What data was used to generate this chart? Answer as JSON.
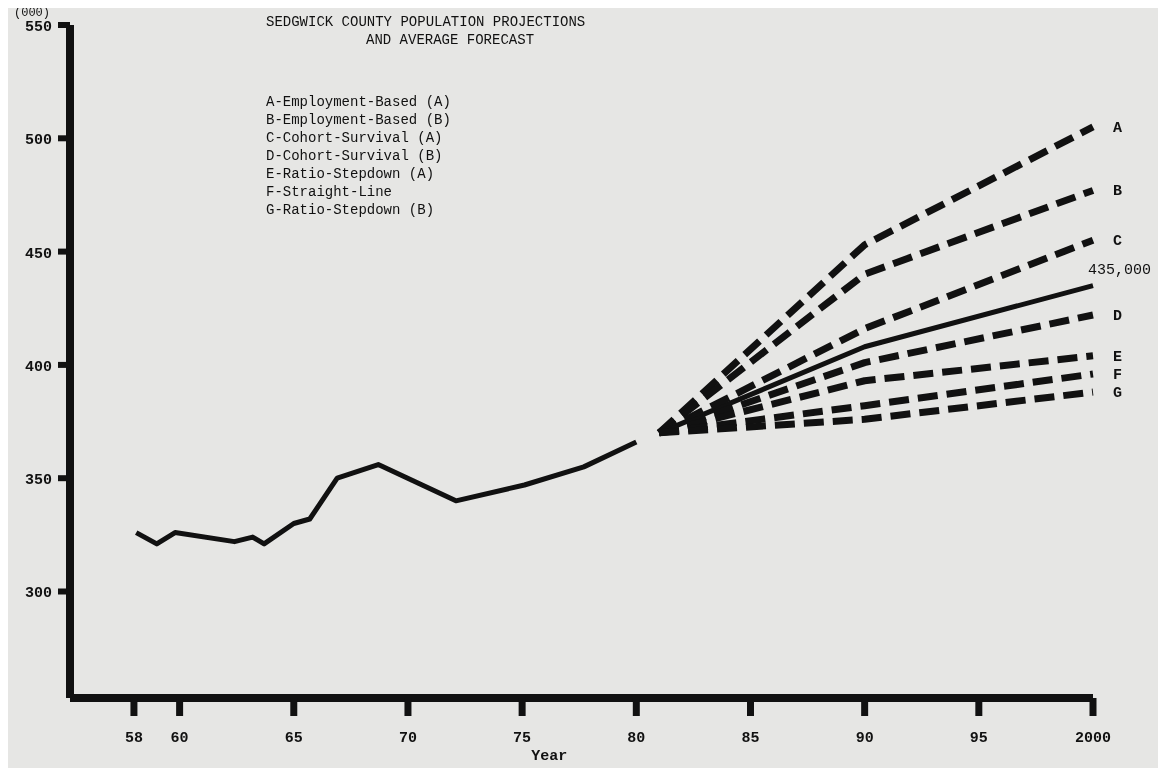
{
  "chart_data": {
    "type": "line",
    "title": "SEDGWICK COUNTY POPULATION PROJECTIONS\nAND AVERAGE FORECAST",
    "xlabel": "Year",
    "ylabel": "(000)",
    "xlim": [
      1955.2,
      2000
    ],
    "xticks": [
      {
        "value": 1958,
        "label": "58"
      },
      {
        "value": 1960,
        "label": "60"
      },
      {
        "value": 1965,
        "label": "65"
      },
      {
        "value": 1970,
        "label": "70"
      },
      {
        "value": 1975,
        "label": "75"
      },
      {
        "value": 1980,
        "label": "80"
      },
      {
        "value": 1985,
        "label": "85"
      },
      {
        "value": 1990,
        "label": "90"
      },
      {
        "value": 1995,
        "label": "95"
      },
      2000
    ],
    "ylim": [
      253,
      550
    ],
    "yticks": [
      300,
      350,
      400,
      450,
      500,
      550
    ],
    "grid": false,
    "series": [
      {
        "color": "#111111",
        "line_style": "solid",
        "x": [
          1958.1,
          1959,
          1959.8,
          1962.4,
          1963.2,
          1963.7,
          1965,
          1965.7,
          1966.9,
          1968.7,
          1972.1,
          1975.1,
          1977.7,
          1980
        ],
        "values": [
          326,
          321,
          326,
          322,
          324,
          321,
          330,
          332,
          350,
          356,
          340,
          347,
          355,
          366
        ]
      },
      {
        "color": "#111111",
        "line_style": "solid",
        "x": [
          1981,
          1990,
          2000
        ],
        "values": [
          370,
          408,
          435
        ]
      },
      {
        "name": "A",
        "color": "#111111",
        "line_style": "dashed",
        "x": [
          1981,
          1990,
          2000
        ],
        "values": [
          370,
          453,
          505
        ]
      },
      {
        "name": "B",
        "color": "#111111",
        "line_style": "dashed",
        "x": [
          1981,
          1990,
          2000
        ],
        "values": [
          370,
          440,
          477
        ]
      },
      {
        "name": "C",
        "color": "#111111",
        "line_style": "dashed",
        "x": [
          1981,
          1990,
          2000
        ],
        "values": [
          370,
          416,
          455
        ]
      },
      {
        "name": "D",
        "color": "#111111",
        "line_style": "dashed",
        "x": [
          1981,
          1990,
          2000
        ],
        "values": [
          370,
          401,
          422
        ]
      },
      {
        "name": "E",
        "color": "#111111",
        "line_style": "dashed",
        "x": [
          1981,
          1990,
          2000
        ],
        "values": [
          370,
          393,
          404
        ]
      },
      {
        "name": "F",
        "color": "#111111",
        "line_style": "dashed",
        "x": [
          1981,
          1990,
          2000
        ],
        "values": [
          370,
          382,
          396
        ]
      },
      {
        "name": "G",
        "color": "#111111",
        "line_style": "dashed",
        "x": [
          1981,
          1990,
          2000
        ],
        "values": [
          370,
          376,
          388
        ]
      }
    ],
    "annotations": [
      "A-Employment-Based (A)",
      "B-Employment-Based (B)",
      "C-Cohort-Survival (A)",
      "D-Cohort-Survival (B)",
      "E-Ratio-Stepdown (A)",
      "F-Straight-Line",
      "G-Ratio-Stepdown (B)",
      {
        "text": "435,000",
        "x": 2000,
        "y": 435
      }
    ]
  }
}
